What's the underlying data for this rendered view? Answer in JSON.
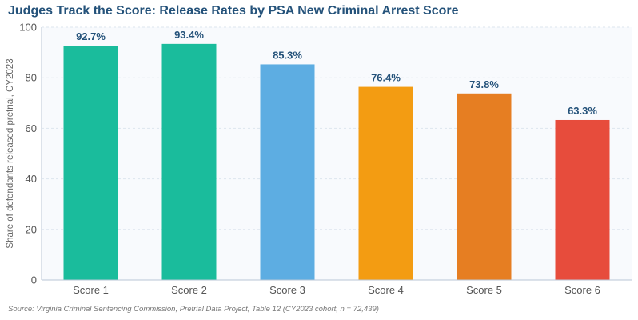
{
  "chart_data": {
    "type": "bar",
    "title": "Judges Track the Score: Release Rates by PSA New Criminal Arrest Score",
    "ylabel": "Share of defendants released pretrial, CY2023",
    "xlabel": "",
    "categories": [
      "Score 1",
      "Score 2",
      "Score 3",
      "Score 4",
      "Score 5",
      "Score 6"
    ],
    "values": [
      92.7,
      93.4,
      85.3,
      76.4,
      73.8,
      63.3
    ],
    "value_labels": [
      "92.7%",
      "93.4%",
      "85.3%",
      "76.4%",
      "73.8%",
      "63.3%"
    ],
    "colors": [
      "#1abc9c",
      "#1abc9c",
      "#5dade2",
      "#f39c12",
      "#e67e22",
      "#e74c3c"
    ],
    "ylim": [
      0,
      100
    ],
    "yticks": [
      0,
      20,
      40,
      60,
      80,
      100
    ],
    "grid": true,
    "legend": "none",
    "source": "Source: Virginia Criminal Sentencing Commission, Pretrial Data Project, Table 12 (CY2023 cohort, n = 72,439)"
  }
}
